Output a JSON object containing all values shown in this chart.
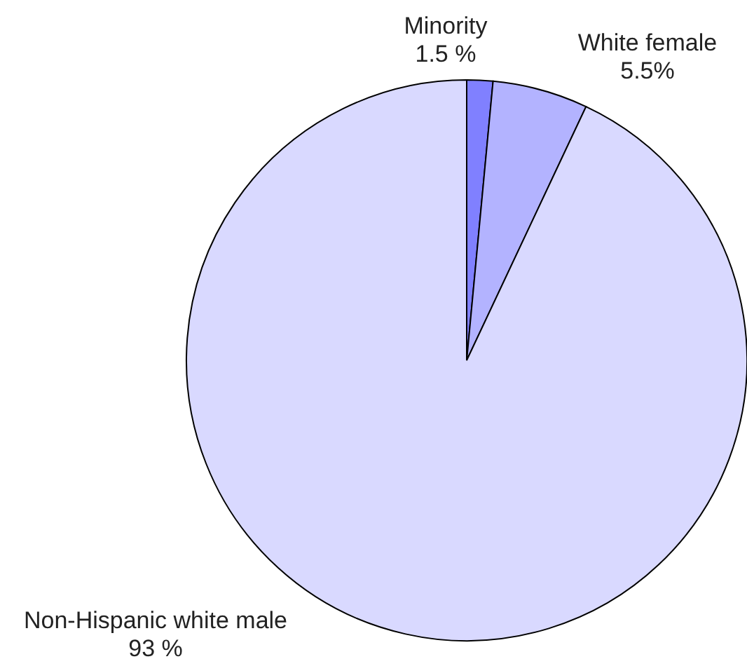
{
  "chart_data": {
    "type": "pie",
    "categories": [
      "Minority",
      "White female",
      "Non-Hispanic white male"
    ],
    "values": [
      1.5,
      5.5,
      93
    ],
    "colors": [
      "#8080ff",
      "#b3b3ff",
      "#d9d9ff"
    ],
    "value_labels": [
      "1.5 %",
      "5.5%",
      "93 %"
    ],
    "legend": false
  }
}
